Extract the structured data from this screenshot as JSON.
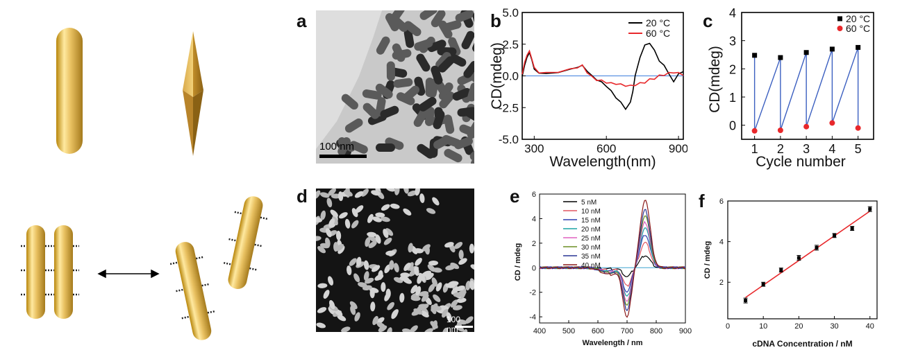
{
  "panels": {
    "a": {
      "label": "a",
      "scalebar": "100 nm"
    },
    "b": {
      "label": "b"
    },
    "c": {
      "label": "c"
    },
    "d": {
      "label": "d",
      "scalebar": "100 nm"
    },
    "e": {
      "label": "e"
    },
    "f": {
      "label": "f"
    }
  },
  "chart_data": [
    {
      "id": "b",
      "type": "line",
      "xlabel": "Wavelength(nm)",
      "ylabel": "CD(mdeg)",
      "xlim": [
        250,
        920
      ],
      "ylim": [
        -5.0,
        5.0
      ],
      "xticks": [
        "300",
        "600",
        "900"
      ],
      "yticks": [
        "5.0",
        "2.5",
        "0.0",
        "-2.5",
        "-5.0"
      ],
      "legend_position": "top-right",
      "series": [
        {
          "name": "20 °C",
          "color": "#000000",
          "x": [
            250,
            260,
            270,
            280,
            290,
            300,
            320,
            350,
            400,
            450,
            480,
            500,
            520,
            540,
            560,
            580,
            600,
            620,
            640,
            660,
            680,
            700,
            710,
            720,
            740,
            760,
            780,
            800,
            820,
            840,
            860,
            880,
            900,
            920
          ],
          "y": [
            0.0,
            0.8,
            1.5,
            1.8,
            1.3,
            0.5,
            0.25,
            0.15,
            0.3,
            0.5,
            0.7,
            0.8,
            0.4,
            0.0,
            -0.3,
            -0.5,
            -0.8,
            -1.2,
            -1.7,
            -2.1,
            -2.6,
            -2.1,
            -1.2,
            0.0,
            1.5,
            2.4,
            2.6,
            2.0,
            1.2,
            0.8,
            0.2,
            -0.5,
            0.2,
            0.3
          ]
        },
        {
          "name": "60 °C",
          "color": "#e8282b",
          "x": [
            250,
            260,
            270,
            280,
            290,
            300,
            320,
            350,
            400,
            450,
            480,
            500,
            520,
            540,
            560,
            580,
            600,
            620,
            640,
            660,
            680,
            700,
            720,
            740,
            760,
            780,
            800,
            820,
            840,
            860,
            880,
            900,
            920
          ],
          "y": [
            0.2,
            1.0,
            1.7,
            1.9,
            1.4,
            0.6,
            0.3,
            0.2,
            0.35,
            0.5,
            0.7,
            0.8,
            0.3,
            -0.1,
            -0.3,
            -0.4,
            -0.5,
            -0.6,
            -0.6,
            -0.7,
            -0.75,
            -0.8,
            -0.7,
            -0.6,
            -0.5,
            -0.3,
            -0.2,
            0.0,
            0.1,
            0.2,
            0.3,
            0.2,
            0.1
          ]
        }
      ]
    },
    {
      "id": "c",
      "type": "scatter",
      "xlabel": "Cycle number",
      "ylabel": "CD(mdeg)",
      "xlim": [
        0.5,
        5.6
      ],
      "ylim": [
        -0.5,
        4.0
      ],
      "xticks": [
        "1",
        "2",
        "3",
        "4",
        "5"
      ],
      "yticks": [
        "0",
        "1",
        "2",
        "3",
        "4"
      ],
      "legend_position": "top-right",
      "series": [
        {
          "name": "20 °C",
          "color": "#000000",
          "x": [
            1,
            2,
            3,
            4,
            5
          ],
          "y": [
            2.48,
            2.4,
            2.58,
            2.7,
            2.76
          ]
        },
        {
          "name": "60 °C",
          "color": "#e8282b",
          "x": [
            1,
            2,
            3,
            4,
            5
          ],
          "y": [
            -0.2,
            -0.18,
            -0.05,
            0.08,
            -0.1
          ]
        }
      ],
      "connector_color": "#3b5fc0"
    },
    {
      "id": "e",
      "type": "line",
      "xlabel": "Wavelength / nm",
      "ylabel": "CD / mdeg",
      "xlim": [
        400,
        900
      ],
      "ylim": [
        -4.5,
        6.0
      ],
      "xticks": [
        "400",
        "500",
        "600",
        "700",
        "800",
        "900"
      ],
      "yticks": [
        "6",
        "4",
        "2",
        "0",
        "-2",
        "-4"
      ],
      "legend_position": "top-left",
      "series": [
        {
          "name": "5 nM",
          "color": "#000000",
          "amp": 1.0
        },
        {
          "name": "10 nM",
          "color": "#e05560",
          "amp": 2.05
        },
        {
          "name": "15 nM",
          "color": "#2e3fb0",
          "amp": 2.7
        },
        {
          "name": "20 nM",
          "color": "#1aa3a3",
          "amp": 3.25
        },
        {
          "name": "25 nM",
          "color": "#e060c0",
          "amp": 3.7
        },
        {
          "name": "30 nM",
          "color": "#6b8e23",
          "amp": 4.25
        },
        {
          "name": "35 nM",
          "color": "#283593",
          "amp": 4.7
        },
        {
          "name": "40 nM",
          "color": "#8b1a1a",
          "amp": 5.55
        }
      ]
    },
    {
      "id": "f",
      "type": "scatter",
      "xlabel": "cDNA Concentration / nM",
      "ylabel": "CD / mdeg",
      "xlim": [
        0,
        42
      ],
      "ylim": [
        0.2,
        6.0
      ],
      "xticks": [
        "0",
        "10",
        "20",
        "30",
        "40"
      ],
      "yticks": [
        "6",
        "4",
        "2"
      ],
      "x": [
        5,
        10,
        15,
        20,
        25,
        30,
        35,
        40
      ],
      "y": [
        1.1,
        1.9,
        2.6,
        3.2,
        3.7,
        4.3,
        4.65,
        5.6
      ],
      "err": [
        0.12,
        0.1,
        0.1,
        0.12,
        0.12,
        0.1,
        0.1,
        0.12
      ],
      "fit": {
        "x": [
          5,
          40
        ],
        "y": [
          1.25,
          5.5
        ],
        "color": "#e8282b"
      }
    }
  ]
}
